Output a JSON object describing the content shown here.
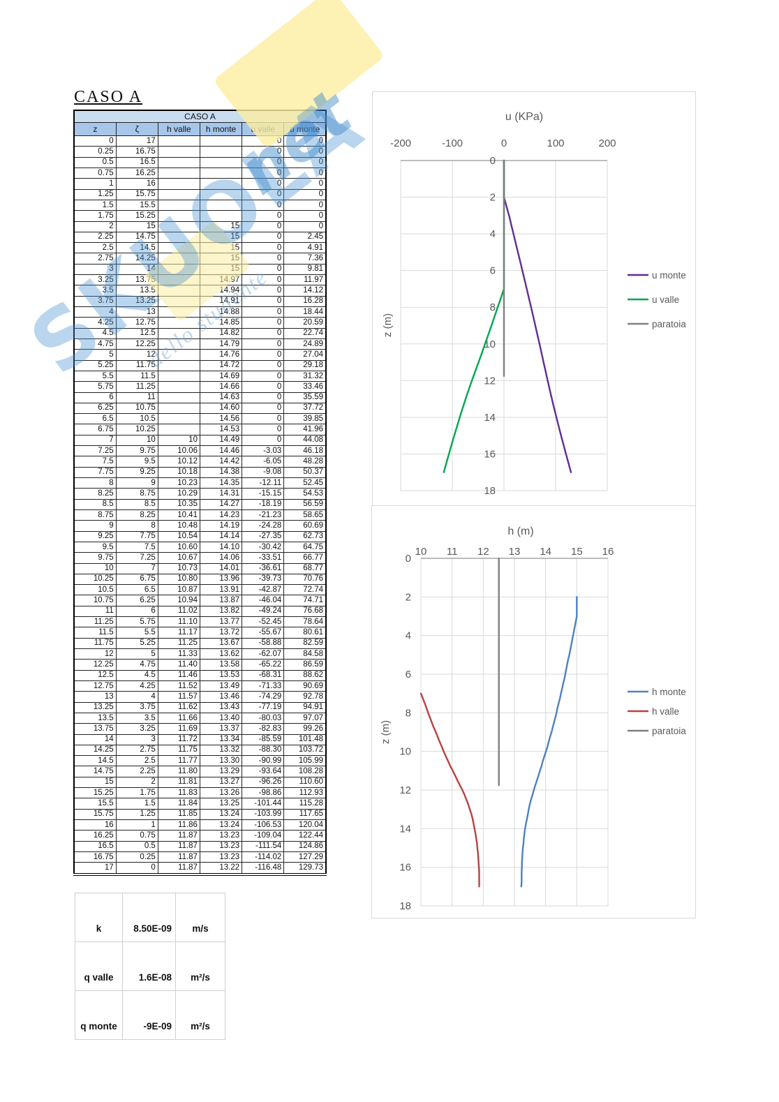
{
  "page_title": "CASO A",
  "table": {
    "title": "CASO A",
    "columns": [
      "z",
      "ζ",
      "h valle",
      "h monte",
      "u valle",
      "u monte"
    ],
    "rows": [
      [
        "0",
        "17",
        "",
        "",
        "0",
        "0"
      ],
      [
        "0.25",
        "16.75",
        "",
        "",
        "0",
        "0"
      ],
      [
        "0.5",
        "16.5",
        "",
        "",
        "0",
        "0"
      ],
      [
        "0.75",
        "16.25",
        "",
        "",
        "0",
        "0"
      ],
      [
        "1",
        "16",
        "",
        "",
        "0",
        "0"
      ],
      [
        "1.25",
        "15.75",
        "",
        "",
        "0",
        "0"
      ],
      [
        "1.5",
        "15.5",
        "",
        "",
        "0",
        "0"
      ],
      [
        "1.75",
        "15.25",
        "",
        "",
        "0",
        "0"
      ],
      [
        "2",
        "15",
        "",
        "15",
        "0",
        "0"
      ],
      [
        "2.25",
        "14.75",
        "",
        "15",
        "0",
        "2.45"
      ],
      [
        "2.5",
        "14.5",
        "",
        "15",
        "0",
        "4.91"
      ],
      [
        "2.75",
        "14.25",
        "",
        "15",
        "0",
        "7.36"
      ],
      [
        "3",
        "14",
        "",
        "15",
        "0",
        "9.81"
      ],
      [
        "3.25",
        "13.75",
        "",
        "14.97",
        "0",
        "11.97"
      ],
      [
        "3.5",
        "13.5",
        "",
        "14.94",
        "0",
        "14.12"
      ],
      [
        "3.75",
        "13.25",
        "",
        "14.91",
        "0",
        "16.28"
      ],
      [
        "4",
        "13",
        "",
        "14.88",
        "0",
        "18.44"
      ],
      [
        "4.25",
        "12.75",
        "",
        "14.85",
        "0",
        "20.59"
      ],
      [
        "4.5",
        "12.5",
        "",
        "14.82",
        "0",
        "22.74"
      ],
      [
        "4.75",
        "12.25",
        "",
        "14.79",
        "0",
        "24.89"
      ],
      [
        "5",
        "12",
        "",
        "14.76",
        "0",
        "27.04"
      ],
      [
        "5.25",
        "11.75",
        "",
        "14.72",
        "0",
        "29.18"
      ],
      [
        "5.5",
        "11.5",
        "",
        "14.69",
        "0",
        "31.32"
      ],
      [
        "5.75",
        "11.25",
        "",
        "14.66",
        "0",
        "33.46"
      ],
      [
        "6",
        "11",
        "",
        "14.63",
        "0",
        "35.59"
      ],
      [
        "6.25",
        "10.75",
        "",
        "14.60",
        "0",
        "37.72"
      ],
      [
        "6.5",
        "10.5",
        "",
        "14.56",
        "0",
        "39.85"
      ],
      [
        "6.75",
        "10.25",
        "",
        "14.53",
        "0",
        "41.96"
      ],
      [
        "7",
        "10",
        "10",
        "14.49",
        "0",
        "44.08"
      ],
      [
        "7.25",
        "9.75",
        "10.06",
        "14.46",
        "-3.03",
        "46.18"
      ],
      [
        "7.5",
        "9.5",
        "10.12",
        "14.42",
        "-6.05",
        "48.28"
      ],
      [
        "7.75",
        "9.25",
        "10.18",
        "14.38",
        "-9.08",
        "50.37"
      ],
      [
        "8",
        "9",
        "10.23",
        "14.35",
        "-12.11",
        "52.45"
      ],
      [
        "8.25",
        "8.75",
        "10.29",
        "14.31",
        "-15.15",
        "54.53"
      ],
      [
        "8.5",
        "8.5",
        "10.35",
        "14.27",
        "-18.19",
        "56.59"
      ],
      [
        "8.75",
        "8.25",
        "10.41",
        "14.23",
        "-21.23",
        "58.65"
      ],
      [
        "9",
        "8",
        "10.48",
        "14.19",
        "-24.28",
        "60.69"
      ],
      [
        "9.25",
        "7.75",
        "10.54",
        "14.14",
        "-27.35",
        "62.73"
      ],
      [
        "9.5",
        "7.5",
        "10.60",
        "14.10",
        "-30.42",
        "64.75"
      ],
      [
        "9.75",
        "7.25",
        "10.67",
        "14.06",
        "-33.51",
        "66.77"
      ],
      [
        "10",
        "7",
        "10.73",
        "14.01",
        "-36.61",
        "68.77"
      ],
      [
        "10.25",
        "6.75",
        "10.80",
        "13.96",
        "-39.73",
        "70.76"
      ],
      [
        "10.5",
        "6.5",
        "10.87",
        "13.91",
        "-42.87",
        "72.74"
      ],
      [
        "10.75",
        "6.25",
        "10.94",
        "13.87",
        "-46.04",
        "74.71"
      ],
      [
        "11",
        "6",
        "11.02",
        "13.82",
        "-49.24",
        "76.68"
      ],
      [
        "11.25",
        "5.75",
        "11.10",
        "13.77",
        "-52.45",
        "78.64"
      ],
      [
        "11.5",
        "5.5",
        "11.17",
        "13.72",
        "-55.67",
        "80.61"
      ],
      [
        "11.75",
        "5.25",
        "11.25",
        "13.67",
        "-58.88",
        "82.59"
      ],
      [
        "12",
        "5",
        "11.33",
        "13.62",
        "-62.07",
        "84.58"
      ],
      [
        "12.25",
        "4.75",
        "11.40",
        "13.58",
        "-65.22",
        "86.59"
      ],
      [
        "12.5",
        "4.5",
        "11.46",
        "13.53",
        "-68.31",
        "88.62"
      ],
      [
        "12.75",
        "4.25",
        "11.52",
        "13.49",
        "-71.33",
        "90.69"
      ],
      [
        "13",
        "4",
        "11.57",
        "13.46",
        "-74.29",
        "92.78"
      ],
      [
        "13.25",
        "3.75",
        "11.62",
        "13.43",
        "-77.19",
        "94.91"
      ],
      [
        "13.5",
        "3.5",
        "11.66",
        "13.40",
        "-80.03",
        "97.07"
      ],
      [
        "13.75",
        "3.25",
        "11.69",
        "13.37",
        "-82.83",
        "99.26"
      ],
      [
        "14",
        "3",
        "11.72",
        "13.34",
        "-85.59",
        "101.48"
      ],
      [
        "14.25",
        "2.75",
        "11.75",
        "13.32",
        "-88.30",
        "103.72"
      ],
      [
        "14.5",
        "2.5",
        "11.77",
        "13.30",
        "-90.99",
        "105.99"
      ],
      [
        "14.75",
        "2.25",
        "11.80",
        "13.29",
        "-93.64",
        "108.28"
      ],
      [
        "15",
        "2",
        "11.81",
        "13.27",
        "-96.26",
        "110.60"
      ],
      [
        "15.25",
        "1.75",
        "11.83",
        "13.26",
        "-98.86",
        "112.93"
      ],
      [
        "15.5",
        "1.5",
        "11.84",
        "13.25",
        "-101.44",
        "115.28"
      ],
      [
        "15.75",
        "1.25",
        "11.85",
        "13.24",
        "-103.99",
        "117.65"
      ],
      [
        "16",
        "1",
        "11.86",
        "13.24",
        "-106.53",
        "120.04"
      ],
      [
        "16.25",
        "0.75",
        "11.87",
        "13.23",
        "-109.04",
        "122.44"
      ],
      [
        "16.5",
        "0.5",
        "11.87",
        "13.23",
        "-111.54",
        "124.86"
      ],
      [
        "16.75",
        "0.25",
        "11.87",
        "13.23",
        "-114.02",
        "127.29"
      ],
      [
        "17",
        "0",
        "11.87",
        "13.22",
        "-116.48",
        "129.73"
      ]
    ]
  },
  "params": {
    "rows": [
      {
        "label": "k",
        "value": "8.50E-09",
        "unit": "m/s"
      },
      {
        "label": "q valle",
        "value": "1.6E-08",
        "unit": "m²/s"
      },
      {
        "label": "q monte",
        "value": "-9E-09",
        "unit": "m²/s"
      }
    ]
  },
  "watermark": {
    "brand": "SKUOLA",
    "suffix": "net",
    "script": "dello studente"
  },
  "colors": {
    "u_monte": "#5f2d91",
    "u_valle": "#00a651",
    "h_monte": "#4f81bd",
    "h_valle": "#b8413f",
    "paratoia": "#7f7f7f",
    "grid": "#d9d9d9",
    "axis": "#a6a6a6",
    "chart_text": "#595959",
    "header_band": "#c9ddf1",
    "header_cols": "#a7c6e9"
  },
  "chart_data": [
    {
      "id": "u-chart",
      "type": "line",
      "title": "u (KPa)",
      "ylabel": "z (m)",
      "xlim": [
        -200,
        200
      ],
      "ylim": [
        0,
        18
      ],
      "x_ticks": [
        -200,
        -100,
        0,
        100,
        200
      ],
      "y_ticks": [
        0,
        2,
        4,
        6,
        8,
        10,
        12,
        14,
        16,
        18
      ],
      "grid": true,
      "legend_position": "right",
      "series": [
        {
          "name": "u monte",
          "color": "#5f2d91",
          "z_start": 0,
          "z_step": 0.25,
          "values": [
            0,
            0,
            0,
            0,
            0,
            0,
            0,
            0,
            0,
            2.45,
            4.91,
            7.36,
            9.81,
            11.97,
            14.12,
            16.28,
            18.44,
            20.59,
            22.74,
            24.89,
            27.04,
            29.18,
            31.32,
            33.46,
            35.59,
            37.72,
            39.85,
            41.96,
            44.08,
            46.18,
            48.28,
            50.37,
            52.45,
            54.53,
            56.59,
            58.65,
            60.69,
            62.73,
            64.75,
            66.77,
            68.77,
            70.76,
            72.74,
            74.71,
            76.68,
            78.64,
            80.61,
            82.59,
            84.58,
            86.59,
            88.62,
            90.69,
            92.78,
            94.91,
            97.07,
            99.26,
            101.48,
            103.72,
            105.99,
            108.28,
            110.6,
            112.93,
            115.28,
            117.65,
            120.04,
            122.44,
            124.86,
            127.29,
            129.73
          ]
        },
        {
          "name": "u valle",
          "color": "#00a651",
          "z_start": 0,
          "z_step": 0.25,
          "values": [
            0,
            0,
            0,
            0,
            0,
            0,
            0,
            0,
            0,
            0,
            0,
            0,
            0,
            0,
            0,
            0,
            0,
            0,
            0,
            0,
            0,
            0,
            0,
            0,
            0,
            0,
            0,
            0,
            0,
            -3.03,
            -6.05,
            -9.08,
            -12.11,
            -15.15,
            -18.19,
            -21.23,
            -24.28,
            -27.35,
            -30.42,
            -33.51,
            -36.61,
            -39.73,
            -42.87,
            -46.04,
            -49.24,
            -52.45,
            -55.67,
            -58.88,
            -62.07,
            -65.22,
            -68.31,
            -71.33,
            -74.29,
            -77.19,
            -80.03,
            -82.83,
            -85.59,
            -88.3,
            -90.99,
            -93.64,
            -96.26,
            -98.86,
            -101.44,
            -103.99,
            -106.53,
            -109.04,
            -111.54,
            -114.02,
            -116.48
          ]
        },
        {
          "name": "paratoia",
          "color": "#7f7f7f",
          "z_start": 0,
          "z_step": 11.75,
          "values": [
            0,
            0
          ]
        }
      ]
    },
    {
      "id": "h-chart",
      "type": "line",
      "title": "h (m)",
      "ylabel": "z (m)",
      "xlim": [
        10,
        16
      ],
      "ylim": [
        0,
        18
      ],
      "x_ticks": [
        10,
        11,
        12,
        13,
        14,
        15,
        16
      ],
      "y_ticks": [
        0,
        2,
        4,
        6,
        8,
        10,
        12,
        14,
        16,
        18
      ],
      "grid": true,
      "legend_position": "right",
      "series": [
        {
          "name": "h monte",
          "color": "#4f81bd",
          "z_start": 2,
          "z_step": 0.25,
          "values": [
            15,
            15,
            15,
            15,
            15,
            14.97,
            14.94,
            14.91,
            14.88,
            14.85,
            14.82,
            14.79,
            14.76,
            14.72,
            14.69,
            14.66,
            14.63,
            14.6,
            14.56,
            14.53,
            14.49,
            14.46,
            14.42,
            14.38,
            14.35,
            14.31,
            14.27,
            14.23,
            14.19,
            14.14,
            14.1,
            14.06,
            14.01,
            13.96,
            13.91,
            13.87,
            13.82,
            13.77,
            13.72,
            13.67,
            13.62,
            13.58,
            13.53,
            13.49,
            13.46,
            13.43,
            13.4,
            13.37,
            13.34,
            13.32,
            13.3,
            13.29,
            13.27,
            13.26,
            13.25,
            13.24,
            13.24,
            13.23,
            13.23,
            13.23,
            13.22
          ]
        },
        {
          "name": "h valle",
          "color": "#b8413f",
          "z_start": 7,
          "z_step": 0.25,
          "values": [
            10,
            10.06,
            10.12,
            10.18,
            10.23,
            10.29,
            10.35,
            10.41,
            10.48,
            10.54,
            10.6,
            10.67,
            10.73,
            10.8,
            10.87,
            10.94,
            11.02,
            11.1,
            11.17,
            11.25,
            11.33,
            11.4,
            11.46,
            11.52,
            11.57,
            11.62,
            11.66,
            11.69,
            11.72,
            11.75,
            11.77,
            11.8,
            11.81,
            11.83,
            11.84,
            11.85,
            11.86,
            11.87,
            11.87,
            11.87,
            11.87
          ]
        },
        {
          "name": "paratoia",
          "color": "#7f7f7f",
          "z_start": 0,
          "z_step": 11.75,
          "values": [
            12.5,
            12.5
          ]
        }
      ]
    }
  ]
}
